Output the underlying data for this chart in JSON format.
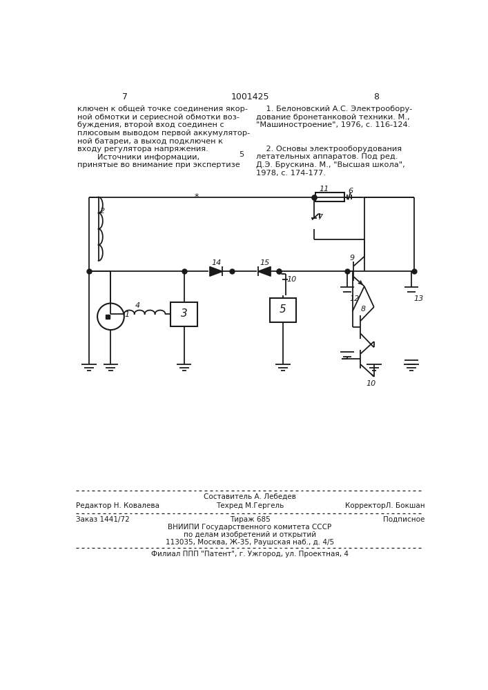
{
  "page_number_left": "7",
  "page_number_center": "1001425",
  "page_number_right": "8",
  "left_text": "ключен к общей точке соединения якор-\nной обмотки и сериесной обмотки воз-\nбуждения, второй вход соединен с\nплюсовым выводом первой аккумулятор-\nной батареи, а выход подключен к\nвходу регулятора напряжения.\n        Источники информации,\nпринятые во внимание при экспертизе",
  "ref_number_5": "5",
  "right_text_1": "    1. Белоновский А.С. Электрообору-\nдование бронетанковой техники. М.,\n\"Машиностроение\", 1976, с. 116-124.",
  "right_text_2": "    2. Основы электрооборудования\nлетательных аппаратов. Под ред.\nД.Э. Брускина. М., \"Высшая школа\",\n1978, с. 174-177.",
  "footer_line1": "Составитель А. Лебедев",
  "footer_line2_left": "Редактор Н. Ковалева",
  "footer_line2_mid": "Техред М.Гергель",
  "footer_line2_right": "КорректорЛ. Бокшан",
  "footer_order": "Заказ 1441/72",
  "footer_tirazh": "Тираж 685",
  "footer_podpisnoe": "Подписное",
  "footer_vniip1": "ВНИИПИ Государственного комитета СССР",
  "footer_vniip2": "по делам изобретений и открытий",
  "footer_vniip3": "113035, Москва, Ж-35, Раушская наб., д. 4/5",
  "footer_filial": "Филиал ППП \"Патент\", г. Ужгород, ул. Проектная, 4",
  "bg_color": "#ffffff",
  "text_color": "#1a1a1a",
  "line_color": "#1a1a1a"
}
